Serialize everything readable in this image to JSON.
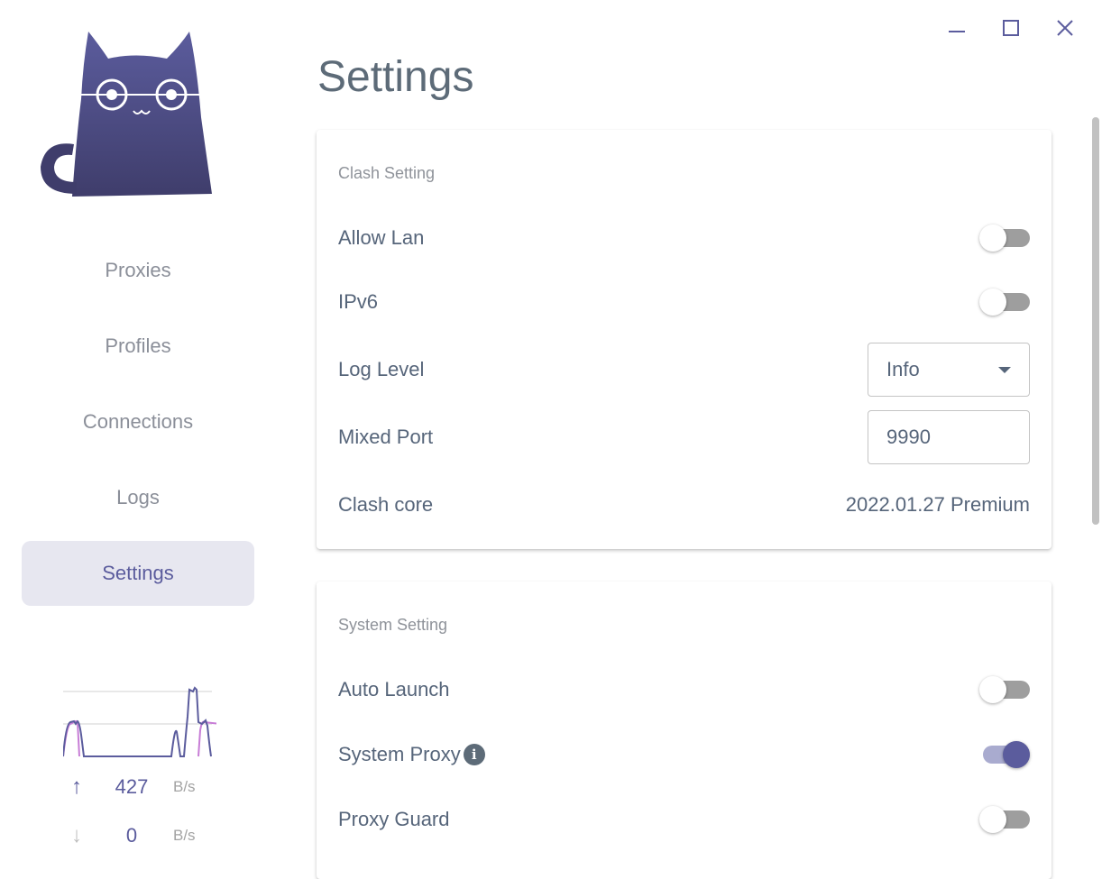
{
  "window": {
    "minimize_icon": "minimize-icon",
    "maximize_icon": "maximize-icon",
    "close_icon": "close-icon"
  },
  "sidebar": {
    "items": [
      {
        "label": "Proxies"
      },
      {
        "label": "Profiles"
      },
      {
        "label": "Connections"
      },
      {
        "label": "Logs"
      },
      {
        "label": "Settings",
        "active": true
      }
    ],
    "traffic": {
      "upload": {
        "value": "427",
        "unit": "B/s"
      },
      "download": {
        "value": "0",
        "unit": "B/s"
      }
    }
  },
  "page": {
    "title": "Settings"
  },
  "clash_setting": {
    "title": "Clash Setting",
    "allow_lan": {
      "label": "Allow Lan",
      "on": false
    },
    "ipv6": {
      "label": "IPv6",
      "on": false
    },
    "log_level": {
      "label": "Log Level",
      "value": "Info"
    },
    "mixed_port": {
      "label": "Mixed Port",
      "value": "9990"
    },
    "clash_core": {
      "label": "Clash core",
      "value": "2022.01.27 Premium"
    }
  },
  "system_setting": {
    "title": "System Setting",
    "auto_launch": {
      "label": "Auto Launch",
      "on": false
    },
    "system_proxy": {
      "label": "System Proxy",
      "on": true,
      "info_icon": "i"
    },
    "proxy_guard": {
      "label": "Proxy Guard",
      "on": false
    }
  },
  "colors": {
    "accent": "#5b5c9d",
    "accent_light": "#a9abcf",
    "download_line": "#c77dd6"
  }
}
